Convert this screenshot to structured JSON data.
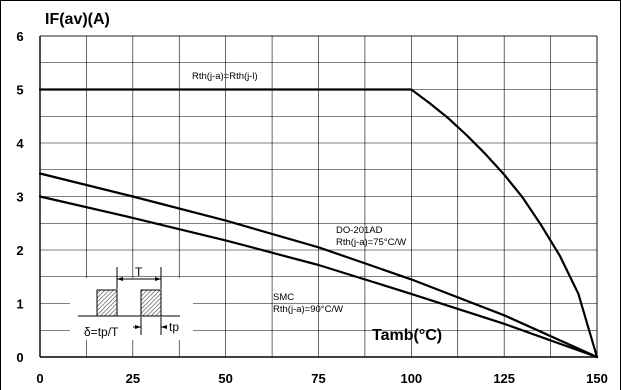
{
  "chart_data": {
    "type": "line",
    "title": "",
    "ylabel": "IF(av)(A)",
    "xlabel": "Tamb(°C)",
    "xlim": [
      0,
      150
    ],
    "ylim": [
      0,
      6
    ],
    "grid": true,
    "x_ticks": [
      "0",
      "25",
      "50",
      "75",
      "100",
      "125",
      "150"
    ],
    "y_ticks": [
      "0",
      "1",
      "2",
      "3",
      "4",
      "5",
      "6"
    ],
    "series": [
      {
        "name": "Rth(j-a)=Rth(j-l)",
        "x": [
          0,
          100,
          105,
          110,
          115,
          120,
          125,
          130,
          135,
          140,
          145,
          150
        ],
        "y": [
          5,
          5,
          4.74,
          4.46,
          4.14,
          3.79,
          3.41,
          2.98,
          2.46,
          1.89,
          1.18,
          0
        ]
      },
      {
        "name": "DO-201AD",
        "label_line2": "Rth(j-a)=75°C/W",
        "x": [
          0,
          25,
          50,
          75,
          100,
          125,
          150
        ],
        "y": [
          3.43,
          3.0,
          2.55,
          2.05,
          1.45,
          0.78,
          0
        ]
      },
      {
        "name": "SMC",
        "label_line2": "Rth(j-a)=90°C/W",
        "x": [
          0,
          25,
          50,
          75,
          100,
          125,
          150
        ],
        "y": [
          3.0,
          2.6,
          2.18,
          1.72,
          1.18,
          0.62,
          0
        ]
      }
    ],
    "inset": {
      "T_label": "T",
      "tp_label": "tp",
      "delta_label": "δ=tp/T"
    },
    "colors": {
      "line": "#000000",
      "grid": "#000000",
      "hatch": "#555555"
    }
  }
}
